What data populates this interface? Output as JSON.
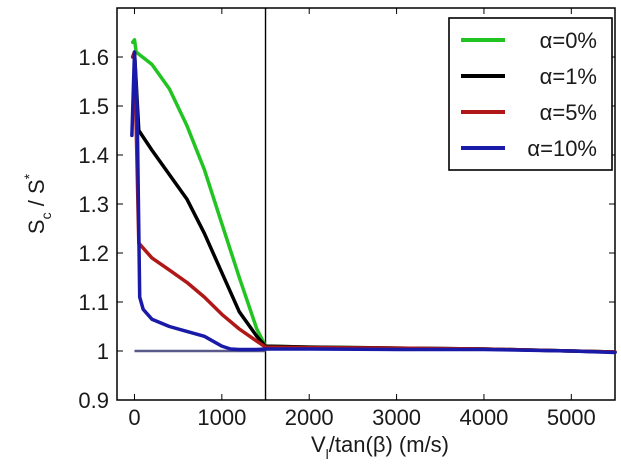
{
  "chart_data": {
    "type": "line",
    "xlabel": {
      "main": "V",
      "sub": "l",
      "rest": "/tan(β) (m/s)"
    },
    "ylabel": {
      "s1": "S",
      "s1sub": "c",
      "mid": " / S",
      "s2sup": "*"
    },
    "xlim": [
      -200,
      5500
    ],
    "ylim": [
      0.9,
      1.7
    ],
    "xticks": [
      0,
      1000,
      2000,
      3000,
      4000,
      5000
    ],
    "yticks": [
      0.9,
      1,
      1.1,
      1.2,
      1.3,
      1.4,
      1.5,
      1.6
    ],
    "xtick_labels": [
      "0",
      "1000",
      "2000",
      "3000",
      "4000",
      "5000"
    ],
    "ytick_labels": [
      "0.9",
      "1",
      "1.1",
      "1.2",
      "1.3",
      "1.4",
      "1.5",
      "1.6"
    ],
    "grid": false,
    "legend_position": "top-right",
    "vline_x": 1500,
    "hline": {
      "x": [
        0,
        1500
      ],
      "y": 1.0,
      "color": "#5a5a8a"
    },
    "series": [
      {
        "name": "α=0%",
        "color": "#22c422",
        "x": [
          -20,
          0,
          20,
          200,
          400,
          600,
          800,
          1000,
          1200,
          1400,
          1500,
          2000,
          3000,
          4000,
          5000,
          5500
        ],
        "y": [
          1.63,
          1.635,
          1.61,
          1.585,
          1.535,
          1.46,
          1.37,
          1.26,
          1.15,
          1.045,
          1.01,
          1.008,
          1.006,
          1.004,
          1.0,
          0.998
        ]
      },
      {
        "name": "α=1%",
        "color": "#000000",
        "x": [
          -20,
          0,
          50,
          200,
          400,
          600,
          800,
          1000,
          1200,
          1400,
          1500,
          2000,
          3000,
          4000,
          5000,
          5500
        ],
        "y": [
          1.6,
          1.61,
          1.45,
          1.41,
          1.36,
          1.31,
          1.24,
          1.16,
          1.08,
          1.03,
          1.01,
          1.008,
          1.006,
          1.004,
          1.0,
          0.998
        ]
      },
      {
        "name": "α=5%",
        "color": "#b01818",
        "x": [
          -20,
          0,
          50,
          200,
          400,
          600,
          800,
          1000,
          1200,
          1400,
          1500,
          2000,
          3000,
          4000,
          5000,
          5500
        ],
        "y": [
          1.6,
          1.61,
          1.22,
          1.19,
          1.165,
          1.14,
          1.11,
          1.075,
          1.045,
          1.02,
          1.008,
          1.007,
          1.006,
          1.004,
          1.0,
          0.998
        ]
      },
      {
        "name": "α=10%",
        "color": "#1a1aa8",
        "x": [
          -30,
          0,
          30,
          60,
          100,
          200,
          400,
          600,
          800,
          1000,
          1100,
          1200,
          1400,
          1500,
          2000,
          3000,
          4000,
          5000,
          5500
        ],
        "y": [
          1.44,
          1.61,
          1.5,
          1.11,
          1.085,
          1.065,
          1.05,
          1.04,
          1.03,
          1.01,
          1.004,
          1.003,
          1.003,
          1.004,
          1.004,
          1.003,
          1.003,
          1.0,
          0.997
        ]
      }
    ]
  }
}
